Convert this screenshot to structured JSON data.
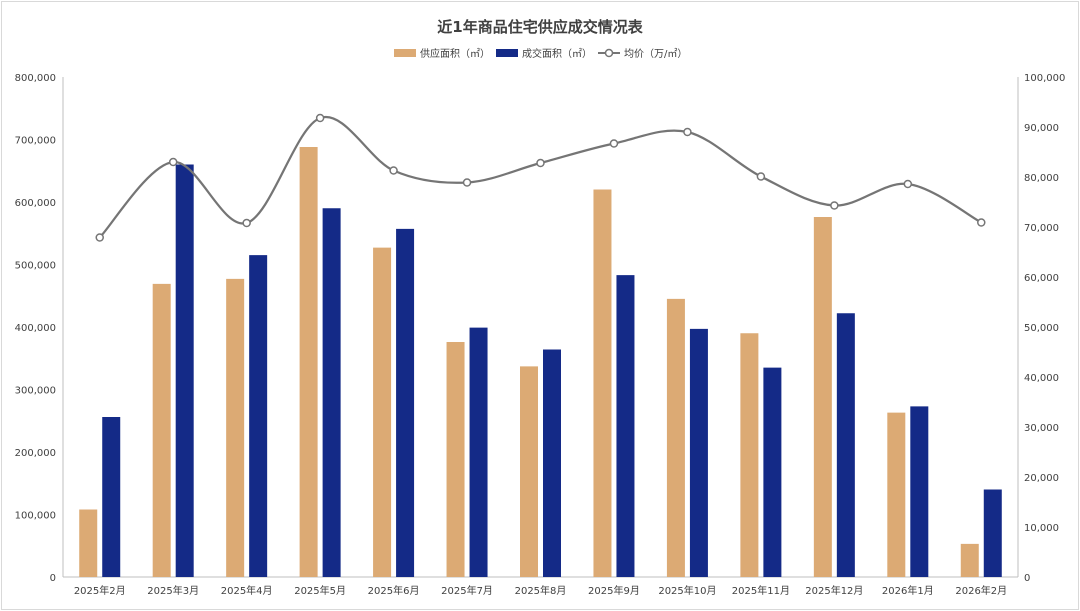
{
  "chart_data": {
    "type": "bar",
    "title": "近1年商品住宅供应成交情况表",
    "categories": [
      "2025年2月",
      "2025年3月",
      "2025年4月",
      "2025年5月",
      "2025年6月",
      "2025年7月",
      "2025年8月",
      "2025年9月",
      "2025年10月",
      "2025年11月",
      "2025年12月",
      "2026年1月",
      "2026年2月"
    ],
    "series": [
      {
        "name": "供应面积（㎡）",
        "type": "bar",
        "axis": "left",
        "color": "#dcaa74",
        "values": [
          108000,
          469000,
          477000,
          688000,
          527000,
          376000,
          337000,
          620000,
          445000,
          390000,
          576000,
          263000,
          53000
        ]
      },
      {
        "name": "成交面积（㎡）",
        "type": "bar",
        "axis": "left",
        "color": "#142a87",
        "values": [
          256000,
          660000,
          515000,
          590000,
          557000,
          399000,
          364000,
          483000,
          397000,
          335000,
          422000,
          273000,
          140000
        ]
      },
      {
        "name": "均价（万/㎡）",
        "type": "line",
        "axis": "right",
        "color": "#757575",
        "smooth": true,
        "values": [
          67900,
          83000,
          70800,
          91800,
          81300,
          78900,
          82800,
          86700,
          89000,
          80100,
          74300,
          78600,
          70900
        ]
      }
    ],
    "ylim_left": [
      0,
      800000
    ],
    "ylim_right": [
      0,
      100000
    ],
    "yticks_left": [
      "0",
      "100,000",
      "200,000",
      "300,000",
      "400,000",
      "500,000",
      "600,000",
      "700,000",
      "800,000"
    ],
    "yticks_right": [
      "0",
      "10,000",
      "20,000",
      "30,000",
      "40,000",
      "50,000",
      "60,000",
      "70,000",
      "80,000",
      "90,000",
      "100,000"
    ],
    "legend_position": "top-center",
    "grid": false
  }
}
